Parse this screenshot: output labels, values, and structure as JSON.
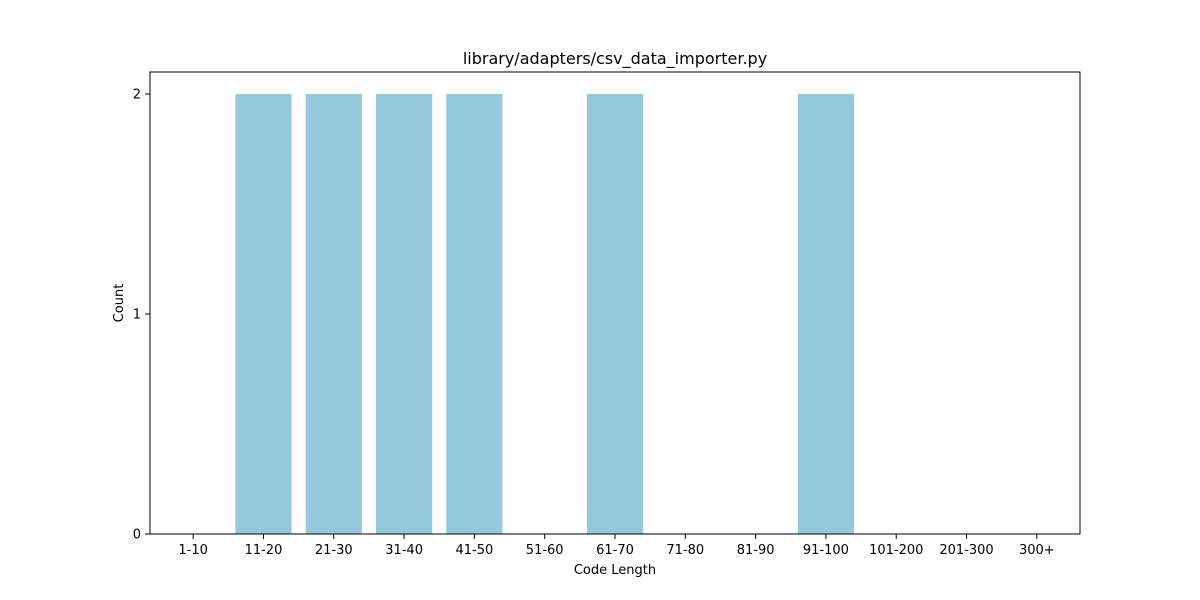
{
  "chart_data": {
    "type": "bar",
    "title": "library/adapters/csv_data_importer.py",
    "xlabel": "Code Length",
    "ylabel": "Count",
    "categories": [
      "1-10",
      "11-20",
      "21-30",
      "31-40",
      "41-50",
      "51-60",
      "61-70",
      "71-80",
      "81-90",
      "91-100",
      "101-200",
      "201-300",
      "300+"
    ],
    "values": [
      0,
      2,
      2,
      2,
      2,
      0,
      2,
      0,
      0,
      2,
      0,
      0,
      0
    ],
    "ylim": [
      0,
      2.1
    ],
    "yticks": [
      0,
      1,
      2
    ],
    "grid": false,
    "legend": "none",
    "bar_color": "#96c8dc"
  }
}
